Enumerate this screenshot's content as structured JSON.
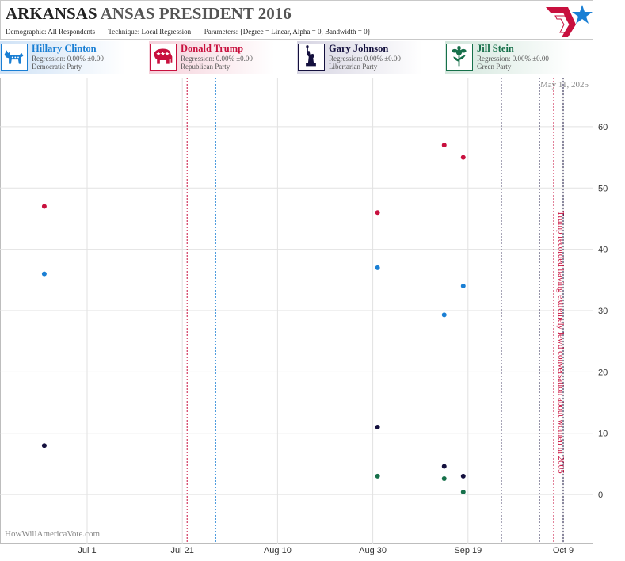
{
  "header": {
    "title_part1": "ARKANSAS",
    "title_part2": "ANSAS PRESIDENT 2016",
    "demographic_label": "Demographic:",
    "demographic_value": "All Respondents",
    "technique_label": "Technique:",
    "technique_value": "Local Regression",
    "parameters_label": "Parameters:",
    "parameters_value": "{Degree = Linear, Alpha = 0, Bandwidth = 0}"
  },
  "candidates": [
    {
      "name": "Hillary Clinton",
      "regression": "Regression: 0.00% ±0.00",
      "party": "Democratic Party",
      "color": "#1a7fd4",
      "icon": "donkey-icon"
    },
    {
      "name": "Donald Trump",
      "regression": "Regression: 0.00% ±0.00",
      "party": "Republican Party",
      "color": "#c8103e",
      "icon": "elephant-icon"
    },
    {
      "name": "Gary Johnson",
      "regression": "Regression: 0.00% ±0.00",
      "party": "Libertarian Party",
      "color": "#14103e",
      "icon": "statue-of-liberty-icon"
    },
    {
      "name": "Jill Stein",
      "regression": "Regression: 0.00% ±0.00",
      "party": "Green Party",
      "color": "#16704a",
      "icon": "flower-icon"
    }
  ],
  "chart_data": {
    "type": "scatter",
    "date_label": "May 11, 2025",
    "watermark": "HowWillAmericaVote.com",
    "x_ticks": [
      "Jul 1",
      "Jul 21",
      "Aug 10",
      "Aug 30",
      "Sep 19",
      "Oct 9"
    ],
    "y_ticks": [
      "0",
      "10",
      "20",
      "30",
      "40",
      "50",
      "60"
    ],
    "ylim": [
      -8,
      68
    ],
    "grid": true,
    "series": [
      {
        "name": "Hillary Clinton",
        "color": "#1a7fd4",
        "x": [
          "Jun 22",
          "Aug 31",
          "Sep 14",
          "Sep 18"
        ],
        "y": [
          36,
          37,
          29.3,
          34
        ]
      },
      {
        "name": "Donald Trump",
        "color": "#c8103e",
        "x": [
          "Jun 22",
          "Aug 31",
          "Sep 14",
          "Sep 18"
        ],
        "y": [
          47,
          46,
          57,
          55
        ]
      },
      {
        "name": "Gary Johnson",
        "color": "#14103e",
        "x": [
          "Jun 22",
          "Aug 31",
          "Sep 14",
          "Sep 18"
        ],
        "y": [
          8,
          11,
          4.6,
          3
        ]
      },
      {
        "name": "Jill Stein",
        "color": "#16704a",
        "x": [
          "Aug 31",
          "Sep 14",
          "Sep 18"
        ],
        "y": [
          3,
          2.6,
          0.4
        ]
      }
    ],
    "event_lines": [
      {
        "x": "Jul 22",
        "color": "#c8103e"
      },
      {
        "x": "Jul 28",
        "color": "#1a7fd4"
      },
      {
        "x": "Sep 26",
        "color": "#14103e"
      },
      {
        "x": "Oct 4",
        "color": "#14103e"
      },
      {
        "x": "Oct 7",
        "color": "#c8103e"
      },
      {
        "x": "Oct 9",
        "color": "#14103e"
      }
    ],
    "annotation": {
      "text": "Trump recorded having extremely lewd conversation about women in 2005",
      "color": "#c8103e"
    }
  }
}
